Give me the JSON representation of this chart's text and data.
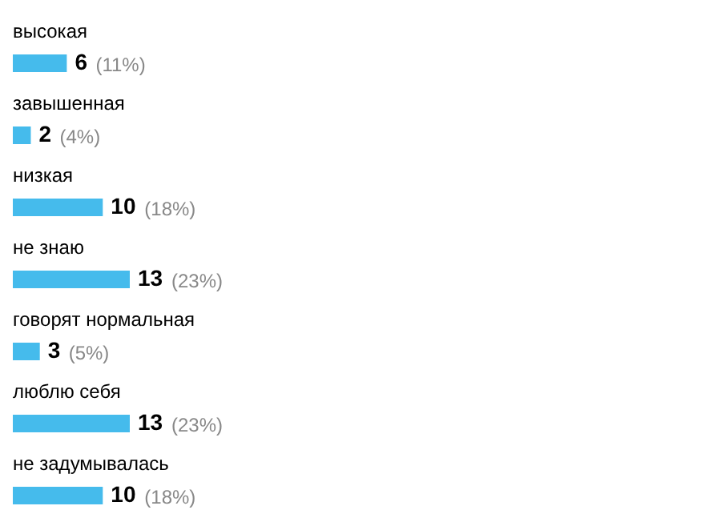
{
  "chart_data": {
    "type": "bar",
    "orientation": "horizontal",
    "categories": [
      "высокая",
      "завышенная",
      "низкая",
      "не знаю",
      "говорят нормальная",
      "люблю себя",
      "не задумывалась"
    ],
    "values": [
      6,
      2,
      10,
      13,
      3,
      13,
      10
    ],
    "color": "#45bbec",
    "data_labels": true,
    "annotations": [
      {
        "text": "(11%)",
        "x": 6,
        "y": "высокая"
      },
      {
        "text": "(4%)",
        "x": 2,
        "y": "завышенная"
      },
      {
        "text": "(18%)",
        "x": 10,
        "y": "низкая"
      },
      {
        "text": "(23%)",
        "x": 13,
        "y": "не знаю"
      },
      {
        "text": "(5%)",
        "x": 3,
        "y": "говорят нормальная"
      },
      {
        "text": "(23%)",
        "x": 13,
        "y": "люблю себя"
      },
      {
        "text": "(18%)",
        "x": 10,
        "y": "не задумывалась"
      }
    ]
  }
}
